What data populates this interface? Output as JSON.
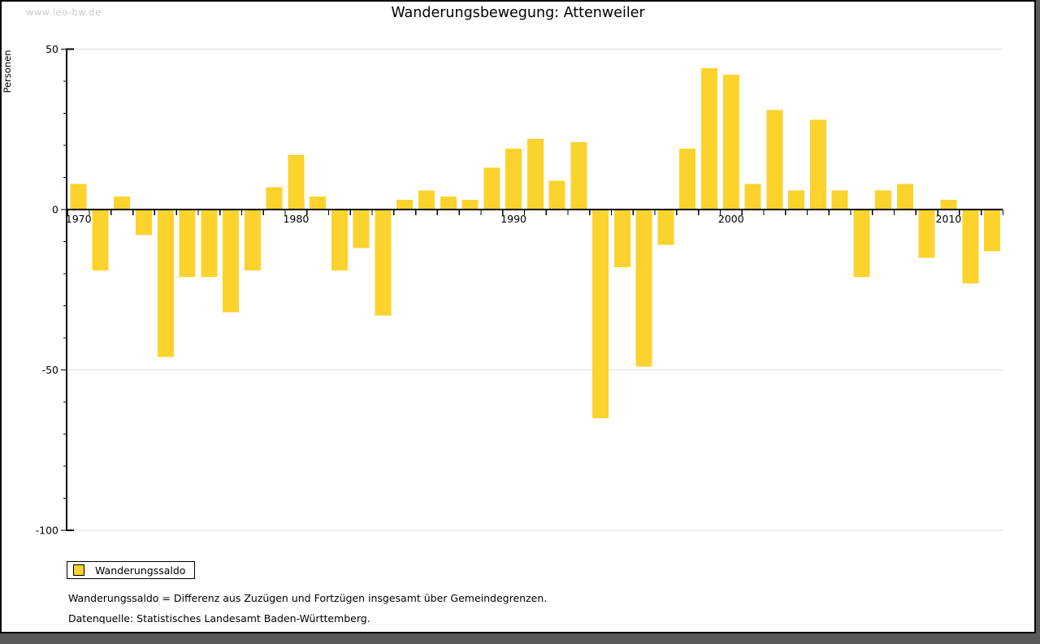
{
  "page": {
    "watermark": "www.leo-bw.de",
    "title": "Wanderungsbewegung: Attenweiler"
  },
  "legend": {
    "label": "Wanderungssaldo",
    "position": "bottom-left"
  },
  "footnotes": {
    "definition": "Wanderungssaldo = Differenz aus Zuzügen und Fortzügen insgesamt über Gemeindegrenzen.",
    "source": "Datenquelle: Statistisches Landesamt Baden-Württemberg."
  },
  "chart_data": {
    "type": "bar",
    "title": "Wanderungsbewegung: Attenweiler",
    "xlabel": "",
    "ylabel": "Personen",
    "series_name": "Wanderungssaldo",
    "years": [
      1970,
      1971,
      1972,
      1973,
      1974,
      1975,
      1976,
      1977,
      1978,
      1979,
      1980,
      1981,
      1982,
      1983,
      1984,
      1985,
      1986,
      1987,
      1988,
      1989,
      1990,
      1991,
      1992,
      1993,
      1994,
      1995,
      1996,
      1997,
      1998,
      1999,
      2000,
      2001,
      2002,
      2003,
      2004,
      2005,
      2006,
      2007,
      2008,
      2009,
      2010,
      2011,
      2012
    ],
    "values": [
      8,
      -19,
      4,
      -8,
      -46,
      -21,
      -21,
      -32,
      -19,
      7,
      17,
      4,
      -19,
      -12,
      -33,
      3,
      6,
      4,
      3,
      13,
      19,
      22,
      9,
      21,
      -65,
      -18,
      -49,
      -11,
      19,
      44,
      42,
      8,
      31,
      6,
      28,
      6,
      -21,
      6,
      8,
      -15,
      3,
      -23,
      -13
    ],
    "x_tick_labels": [
      "1970",
      "1980",
      "1990",
      "2000",
      "2010"
    ],
    "y_tick_labels": [
      "50",
      "0",
      "-50",
      "-100"
    ],
    "y_major_ticks": [
      50,
      0,
      -50,
      -100
    ],
    "y_minor_tick_interval": 10,
    "ylim": [
      -100,
      50
    ],
    "grid": "light horizontal gridlines at 50, -50, -100",
    "legend_position": "bottom-left",
    "bar_color": "#FCD22D",
    "gridline_color": "#dddddd",
    "axis_color": "#000000"
  }
}
